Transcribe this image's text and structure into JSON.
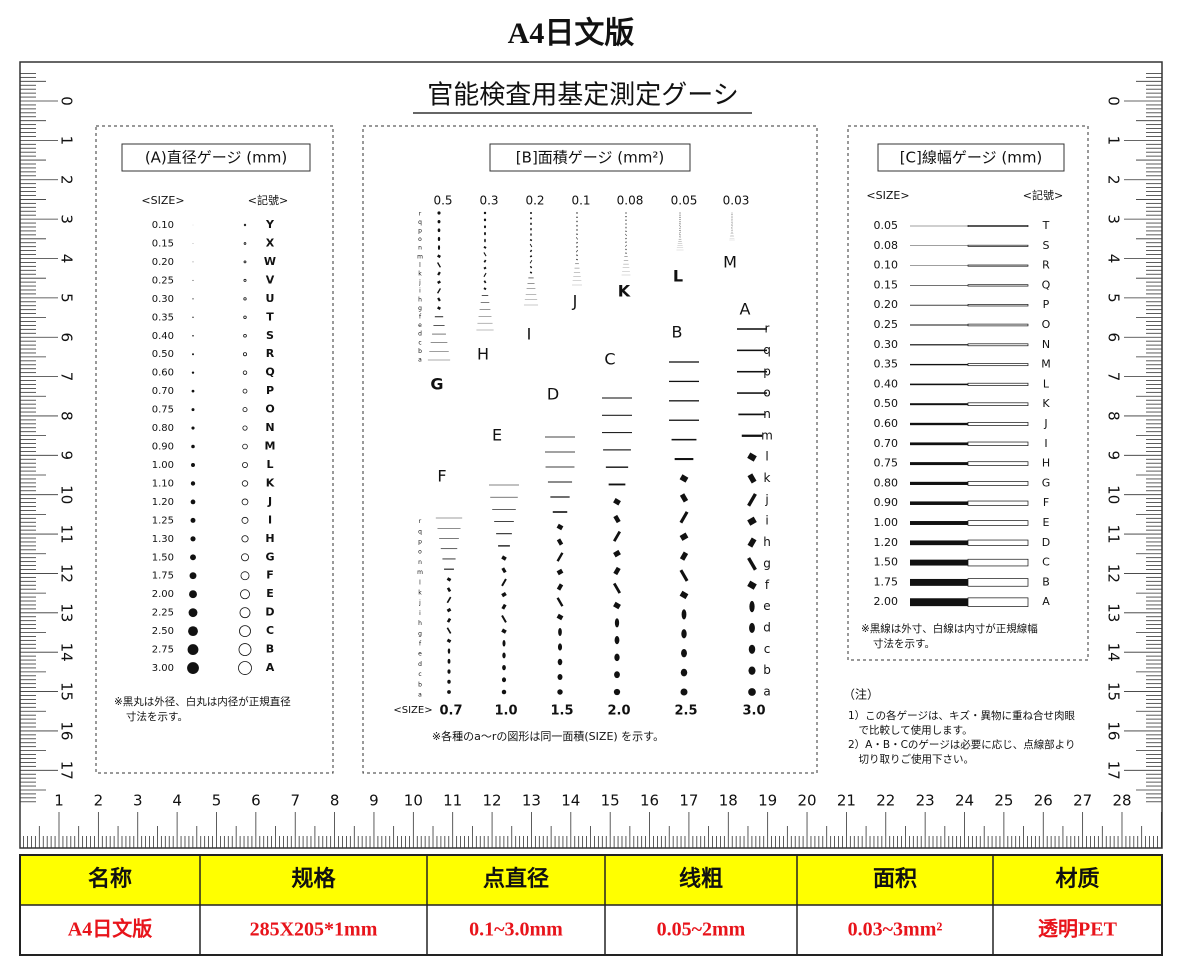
{
  "title": "A4日文版",
  "card": {
    "title": "官能検査用基定測定グーシ",
    "ruler_v": [
      0,
      1,
      2,
      3,
      4,
      5,
      6,
      7,
      8,
      9,
      10,
      11,
      12,
      13,
      14,
      15,
      16,
      17
    ],
    "ruler_h": [
      1,
      2,
      3,
      4,
      5,
      6,
      7,
      8,
      9,
      10,
      11,
      12,
      13,
      14,
      15,
      16,
      17,
      18,
      19,
      20,
      21,
      22,
      23,
      24,
      25,
      26,
      27,
      28
    ],
    "section_a": {
      "title": "(A)直径ゲージ (mm)",
      "size_header": "<SIZE>",
      "code_header": "<記號>",
      "sizes": [
        "0.10",
        "0.15",
        "0.20",
        "0.25",
        "0.30",
        "0.35",
        "0.40",
        "0.50",
        "0.60",
        "0.70",
        "0.75",
        "0.80",
        "0.90",
        "1.00",
        "1.10",
        "1.20",
        "1.25",
        "1.30",
        "1.50",
        "1.75",
        "2.00",
        "2.25",
        "2.50",
        "2.75",
        "3.00"
      ],
      "codes": [
        "Y",
        "X",
        "W",
        "V",
        "U",
        "T",
        "S",
        "R",
        "Q",
        "P",
        "O",
        "N",
        "M",
        "L",
        "K",
        "J",
        "I",
        "H",
        "G",
        "F",
        "E",
        "D",
        "C",
        "B",
        "A"
      ],
      "note": [
        "※黒丸は外径、白丸は内径が正規直径",
        "寸法を示す。"
      ]
    },
    "section_b": {
      "title": "[B]面積ゲージ (mm²)",
      "top_sizes": [
        "0.5",
        "0.3",
        "0.2",
        "0.1",
        "0.08",
        "0.05",
        "0.03"
      ],
      "top_codes": [
        "G",
        "H",
        "I",
        "J",
        "K",
        "L",
        "M"
      ],
      "bottom_sizes": [
        "0.7",
        "1.0",
        "1.5",
        "2.0",
        "2.5",
        "3.0"
      ],
      "bottom_codes": [
        "F",
        "E",
        "D",
        "C",
        "B",
        "A"
      ],
      "row_letters": [
        "a",
        "b",
        "c",
        "d",
        "e",
        "f",
        "g",
        "h",
        "i",
        "j",
        "k",
        "l",
        "m",
        "n",
        "o",
        "p",
        "q",
        "r"
      ],
      "size_label": "<SIZE>",
      "note": "※各種のa～rの図形は同一面積(SIZE) を示す。"
    },
    "section_c": {
      "title": "[C]線幅ゲージ (mm)",
      "size_header": "<SIZE>",
      "code_header": "<記號>",
      "sizes": [
        "0.05",
        "0.08",
        "0.10",
        "0.15",
        "0.20",
        "0.25",
        "0.30",
        "0.35",
        "0.40",
        "0.50",
        "0.60",
        "0.70",
        "0.75",
        "0.80",
        "0.90",
        "1.00",
        "1.20",
        "1.50",
        "1.75",
        "2.00"
      ],
      "codes": [
        "T",
        "S",
        "R",
        "Q",
        "P",
        "O",
        "N",
        "M",
        "L",
        "K",
        "J",
        "I",
        "H",
        "G",
        "F",
        "E",
        "D",
        "C",
        "B",
        "A"
      ],
      "note": [
        "※黒線は外寸、白線は内寸が正規線幅",
        "寸法を示す。"
      ]
    },
    "notes": {
      "heading": "（注）",
      "lines": [
        "1）この各ゲージは、キズ・異物に重ね合せ肉眼",
        "　で比較して使用します。",
        "2）A・B・Cのゲージは必要に応じ、点線部より",
        "　切り取りご使用下さい。"
      ]
    }
  },
  "table": {
    "headers": [
      "名称",
      "规格",
      "点直径",
      "线粗",
      "面积",
      "材质"
    ],
    "row": [
      "A4日文版",
      "285X205*1mm",
      "0.1~3.0mm",
      "0.05~2mm",
      "0.03~3mm²",
      "透明PET"
    ]
  }
}
